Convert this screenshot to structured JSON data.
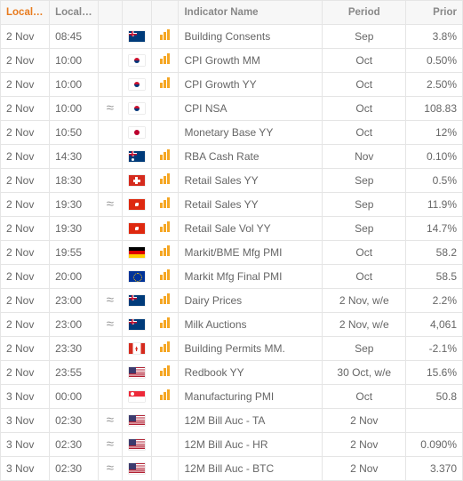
{
  "headers": {
    "date": "Local Date",
    "time": "Local Time",
    "tilde": "",
    "flag": "",
    "bars": "",
    "name": "Indicator Name",
    "period": "Period",
    "prior": "Prior"
  },
  "sort": {
    "column": "date",
    "direction": "asc"
  },
  "rows": [
    {
      "date": "2 Nov",
      "time": "08:45",
      "approx": false,
      "flag": "nz",
      "hasBars": true,
      "name": "Building Consents",
      "period": "Sep",
      "prior": "3.8%"
    },
    {
      "date": "2 Nov",
      "time": "10:00",
      "approx": false,
      "flag": "kr",
      "hasBars": true,
      "name": "CPI Growth MM",
      "period": "Oct",
      "prior": "0.50%"
    },
    {
      "date": "2 Nov",
      "time": "10:00",
      "approx": false,
      "flag": "kr",
      "hasBars": true,
      "name": "CPI Growth YY",
      "period": "Oct",
      "prior": "2.50%"
    },
    {
      "date": "2 Nov",
      "time": "10:00",
      "approx": true,
      "flag": "kr",
      "hasBars": false,
      "name": "CPI NSA",
      "period": "Oct",
      "prior": "108.83"
    },
    {
      "date": "2 Nov",
      "time": "10:50",
      "approx": false,
      "flag": "jp",
      "hasBars": false,
      "name": "Monetary Base YY",
      "period": "Oct",
      "prior": "12%"
    },
    {
      "date": "2 Nov",
      "time": "14:30",
      "approx": false,
      "flag": "au",
      "hasBars": true,
      "name": "RBA Cash Rate",
      "period": "Nov",
      "prior": "0.10%"
    },
    {
      "date": "2 Nov",
      "time": "18:30",
      "approx": false,
      "flag": "ch",
      "hasBars": true,
      "name": "Retail Sales YY",
      "period": "Sep",
      "prior": "0.5%"
    },
    {
      "date": "2 Nov",
      "time": "19:30",
      "approx": true,
      "flag": "hk",
      "hasBars": true,
      "name": "Retail Sales YY",
      "period": "Sep",
      "prior": "11.9%"
    },
    {
      "date": "2 Nov",
      "time": "19:30",
      "approx": false,
      "flag": "hk",
      "hasBars": true,
      "name": "Retail Sale Vol YY",
      "period": "Sep",
      "prior": "14.7%"
    },
    {
      "date": "2 Nov",
      "time": "19:55",
      "approx": false,
      "flag": "de",
      "hasBars": true,
      "name": "Markit/BME Mfg PMI",
      "period": "Oct",
      "prior": "58.2"
    },
    {
      "date": "2 Nov",
      "time": "20:00",
      "approx": false,
      "flag": "eu",
      "hasBars": true,
      "name": "Markit Mfg Final PMI",
      "period": "Oct",
      "prior": "58.5"
    },
    {
      "date": "2 Nov",
      "time": "23:00",
      "approx": true,
      "flag": "nz",
      "hasBars": true,
      "name": "Dairy Prices",
      "period": "2 Nov, w/e",
      "prior": "2.2%"
    },
    {
      "date": "2 Nov",
      "time": "23:00",
      "approx": true,
      "flag": "nz",
      "hasBars": true,
      "name": "Milk Auctions",
      "period": "2 Nov, w/e",
      "prior": "4,061"
    },
    {
      "date": "2 Nov",
      "time": "23:30",
      "approx": false,
      "flag": "ca",
      "hasBars": true,
      "name": "Building Permits MM.",
      "period": "Sep",
      "prior": "-2.1%"
    },
    {
      "date": "2 Nov",
      "time": "23:55",
      "approx": false,
      "flag": "us",
      "hasBars": true,
      "name": "Redbook YY",
      "period": "30 Oct, w/e",
      "prior": "15.6%"
    },
    {
      "date": "3 Nov",
      "time": "00:00",
      "approx": false,
      "flag": "sg",
      "hasBars": true,
      "name": "Manufacturing PMI",
      "period": "Oct",
      "prior": "50.8"
    },
    {
      "date": "3 Nov",
      "time": "02:30",
      "approx": true,
      "flag": "us",
      "hasBars": false,
      "name": "12M Bill Auc - TA",
      "period": "2 Nov",
      "prior": ""
    },
    {
      "date": "3 Nov",
      "time": "02:30",
      "approx": true,
      "flag": "us",
      "hasBars": false,
      "name": "12M Bill Auc - HR",
      "period": "2 Nov",
      "prior": "0.090%"
    },
    {
      "date": "3 Nov",
      "time": "02:30",
      "approx": true,
      "flag": "us",
      "hasBars": false,
      "name": "12M Bill Auc - BTC",
      "period": "2 Nov",
      "prior": "3.370"
    }
  ],
  "style": {
    "accent": "#e87b1e",
    "barColor": "#f5a623",
    "border": "#e5e5e5",
    "headerBg": "#f7f7f7",
    "text": "#666666"
  }
}
